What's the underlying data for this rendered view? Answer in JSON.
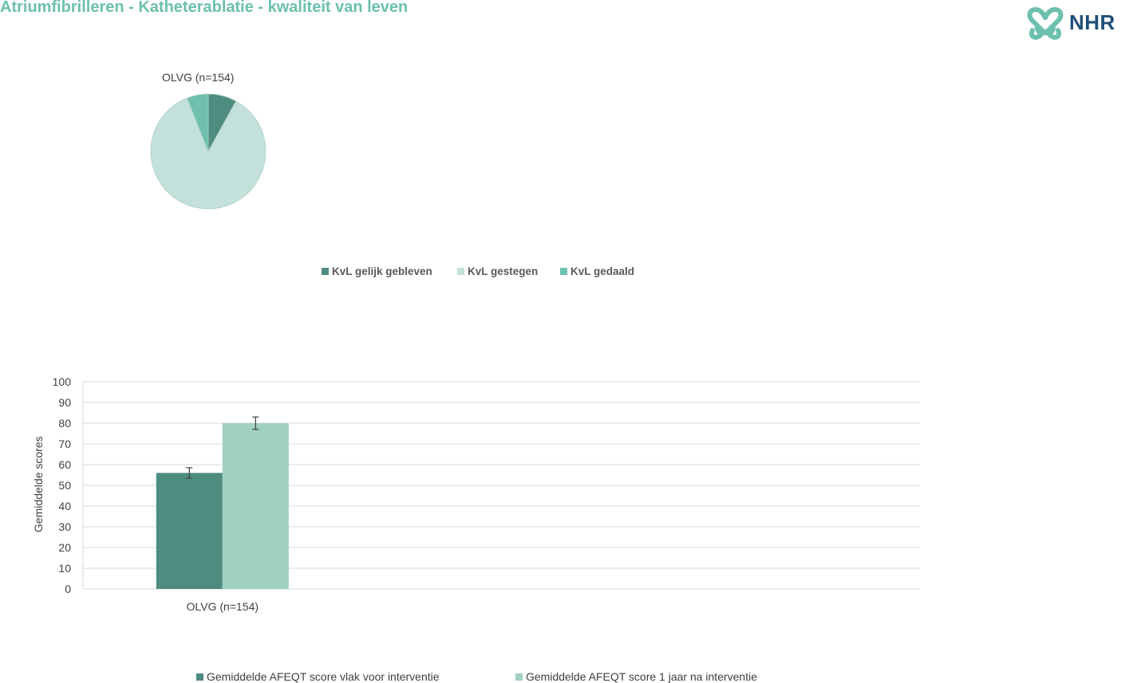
{
  "header": {
    "title": "Atriumfibrilleren - Katheterablatie - kwaliteit van leven",
    "logo_text": "NHR"
  },
  "colors": {
    "title": "#6cc0ad",
    "dark_green": "#4e8c7f",
    "light_green": "#c4e0da",
    "mid_green": "#6fc1ad",
    "bar_light": "#a0d0c2",
    "logo_mark": "#6cc0ad",
    "logo_text": "#1f4e79"
  },
  "chart_data": [
    {
      "type": "pie",
      "title": "OLVG (n=154)",
      "series": [
        {
          "name": "KvL gelijk gebleven",
          "value": 8
        },
        {
          "name": "KvL gestegen",
          "value": 86
        },
        {
          "name": "KvL gedaald",
          "value": 6
        }
      ],
      "legend": [
        "KvL gelijk gebleven",
        "KvL gestegen",
        "KvL gedaald"
      ],
      "legend_position": "bottom"
    },
    {
      "type": "bar",
      "categories": [
        "OLVG (n=154)",
        "",
        ""
      ],
      "series": [
        {
          "name": "Gemiddelde AFEQT score vlak voor interventie",
          "values": [
            56,
            0,
            0
          ],
          "error": [
            2.5,
            0,
            0
          ]
        },
        {
          "name": "Gemiddelde AFEQT score 1 jaar na interventie",
          "values": [
            80,
            0,
            0
          ],
          "error": [
            3,
            0,
            0
          ]
        }
      ],
      "ylabel": "Gemiddelde scores",
      "xlabel": "",
      "ylim": [
        0,
        100
      ],
      "yticks": [
        0,
        10,
        20,
        30,
        40,
        50,
        60,
        70,
        80,
        90,
        100
      ],
      "grid": true,
      "legend_position": "bottom"
    }
  ]
}
